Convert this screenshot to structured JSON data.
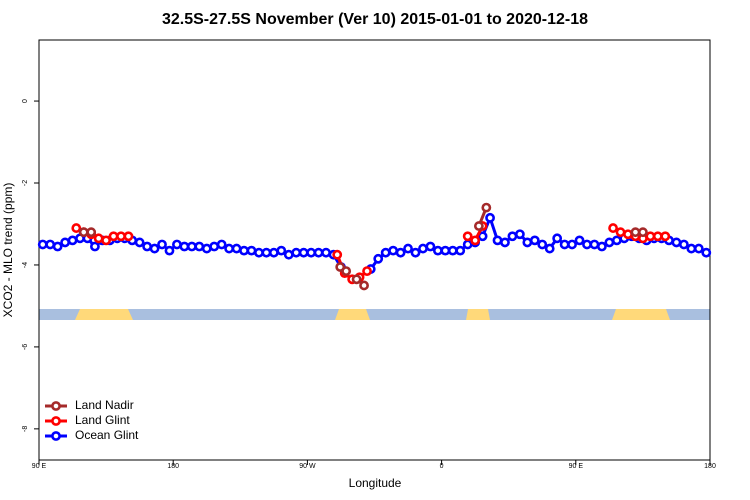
{
  "chart_data": {
    "type": "line",
    "title": "32.5S-27.5S November (Ver 10)   2015-01-01 to 2020-12-18",
    "x_label": "Longitude",
    "y_label": "XCO2 - MLO trend (ppm)",
    "xlim": [
      90,
      540
    ],
    "ylim": [
      -8.76,
      1.49
    ],
    "xticks": [
      {
        "value": 90,
        "label": "90 E"
      },
      180,
      {
        "value": 270,
        "label": "90 W"
      },
      {
        "value": 360,
        "label": "0"
      },
      {
        "value": 450,
        "label": "90 E"
      },
      {
        "value": 540,
        "label": "180"
      }
    ],
    "yticks": [
      0,
      -2,
      -4,
      -6,
      -8
    ],
    "legend": "bottom-left",
    "series": [
      {
        "name": "Land Nadir",
        "color": "#a52a2a",
        "x": [
          120,
          125,
          200,
          292,
          296,
          300,
          303,
          308,
          350,
          385,
          390,
          440,
          490,
          495
        ],
        "values": [
          -3.2,
          -3.2,
          null,
          -4.05,
          -4.15,
          null,
          -4.35,
          -4.5,
          null,
          -3.05,
          -2.6,
          null,
          -3.2,
          -3.2
        ]
      },
      {
        "name": "Land Glint",
        "color": "#ff0000",
        "x": [
          115,
          120,
          125,
          130,
          135,
          140,
          145,
          150,
          220,
          290,
          295,
          300,
          305,
          310,
          340,
          377.5,
          382.5,
          387.5,
          430,
          475,
          480,
          485,
          490,
          495,
          500,
          505,
          510
        ],
        "values": [
          -3.1,
          -3.2,
          -3.25,
          -3.35,
          -3.4,
          -3.3,
          -3.3,
          -3.3,
          null,
          -3.75,
          -4.2,
          -4.35,
          -4.3,
          -4.15,
          null,
          -3.3,
          -3.4,
          -3.05,
          null,
          -3.1,
          -3.2,
          -3.25,
          -3.3,
          -3.35,
          -3.3,
          -3.3,
          -3.3
        ]
      },
      {
        "name": "Ocean Glint",
        "color": "#0000ff",
        "x": [
          92.5,
          97.5,
          102.5,
          107.5,
          112.5,
          117.5,
          122.5,
          127.5,
          132.5,
          137.5,
          142.5,
          147.5,
          152.5,
          157.5,
          162.5,
          167.5,
          172.5,
          177.5,
          182.5,
          187.5,
          192.5,
          197.5,
          202.5,
          207.5,
          212.5,
          217.5,
          222.5,
          227.5,
          232.5,
          237.5,
          242.5,
          247.5,
          252.5,
          257.5,
          262.5,
          267.5,
          272.5,
          277.5,
          282.5,
          287.5,
          292.5,
          302.5,
          312.5,
          317.5,
          322.5,
          327.5,
          332.5,
          337.5,
          342.5,
          347.5,
          352.5,
          357.5,
          362.5,
          367.5,
          372.5,
          377.5,
          382.5,
          387.5,
          392.5,
          397.5,
          402.5,
          407.5,
          412.5,
          417.5,
          422.5,
          427.5,
          432.5,
          437.5,
          442.5,
          447.5,
          452.5,
          457.5,
          462.5,
          467.5,
          472.5,
          477.5,
          482.5,
          487.5,
          492.5,
          497.5,
          502.5,
          507.5,
          512.5,
          517.5,
          522.5,
          527.5,
          532.5,
          537.5
        ],
        "values": [
          -3.5,
          -3.5,
          -3.55,
          -3.45,
          -3.4,
          -3.35,
          -3.35,
          -3.55,
          -3.4,
          -3.4,
          -3.35,
          -3.35,
          -3.4,
          -3.45,
          -3.55,
          -3.6,
          -3.5,
          -3.65,
          -3.5,
          -3.55,
          -3.55,
          -3.55,
          -3.6,
          -3.55,
          -3.5,
          -3.6,
          -3.6,
          -3.65,
          -3.65,
          -3.7,
          -3.7,
          -3.7,
          -3.65,
          -3.75,
          -3.7,
          -3.7,
          -3.7,
          -3.7,
          -3.7,
          -3.75,
          -4.05,
          null,
          -4.1,
          -3.85,
          -3.7,
          -3.65,
          -3.7,
          -3.6,
          -3.7,
          -3.6,
          -3.55,
          -3.65,
          -3.65,
          -3.65,
          -3.65,
          -3.5,
          -3.45,
          -3.3,
          -2.85,
          -3.4,
          -3.45,
          -3.3,
          -3.25,
          -3.45,
          -3.4,
          -3.5,
          -3.6,
          -3.35,
          -3.5,
          -3.5,
          -3.4,
          -3.5,
          -3.5,
          -3.55,
          -3.45,
          -3.4,
          -3.35,
          -3.3,
          -3.35,
          -3.4,
          -3.35,
          -3.35,
          -3.4,
          -3.45,
          -3.5,
          -3.6,
          -3.6,
          -3.7
        ]
      }
    ]
  }
}
